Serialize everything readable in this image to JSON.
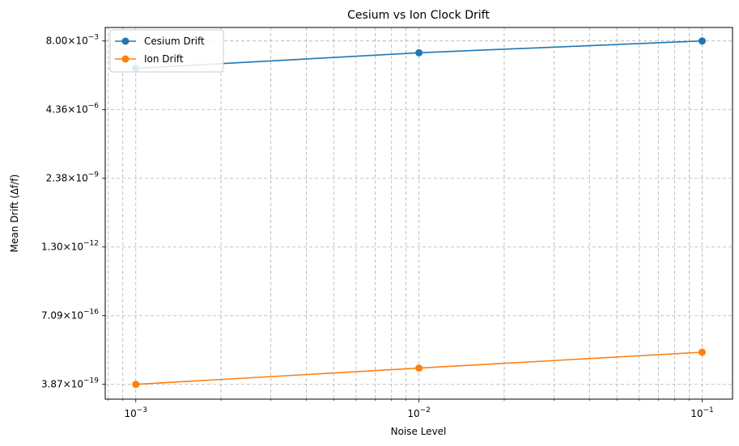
{
  "chart_data": {
    "type": "line",
    "title": "Cesium vs Ion Clock Drift",
    "xlabel": "Noise Level",
    "ylabel": "Mean Drift (Δf/f)",
    "x_scale": "log",
    "y_scale": "log",
    "x": [
      0.001,
      0.01,
      0.1
    ],
    "xlim": [
      0.00078,
      0.128
    ],
    "ylim": [
      7.7e-20,
      0.035
    ],
    "x_ticks": [
      {
        "value": 0.001,
        "base": "10",
        "exp": "−3"
      },
      {
        "value": 0.01,
        "base": "10",
        "exp": "−2"
      },
      {
        "value": 0.1,
        "base": "10",
        "exp": "−1"
      }
    ],
    "y_ticks": [
      {
        "value": 3.87e-19,
        "mantissa": "3.87",
        "exp": "−19"
      },
      {
        "value": 7.09e-16,
        "mantissa": "7.09",
        "exp": "−16"
      },
      {
        "value": 1.3e-12,
        "mantissa": "1.30",
        "exp": "−12"
      },
      {
        "value": 2.38e-09,
        "mantissa": "2.38",
        "exp": "−9"
      },
      {
        "value": 4.36e-06,
        "mantissa": "4.36",
        "exp": "−6"
      },
      {
        "value": 0.008,
        "mantissa": "8.00",
        "exp": "−3"
      }
    ],
    "series": [
      {
        "name": "Cesium Drift",
        "color": "#1f77b4",
        "values": [
          0.0004,
          0.0022,
          0.008
        ]
      },
      {
        "name": "Ion Drift",
        "color": "#ff7f0e",
        "values": [
          3.87e-19,
          2.3e-18,
          1.3e-17
        ]
      }
    ],
    "grid": true,
    "legend_position": "top-left"
  }
}
